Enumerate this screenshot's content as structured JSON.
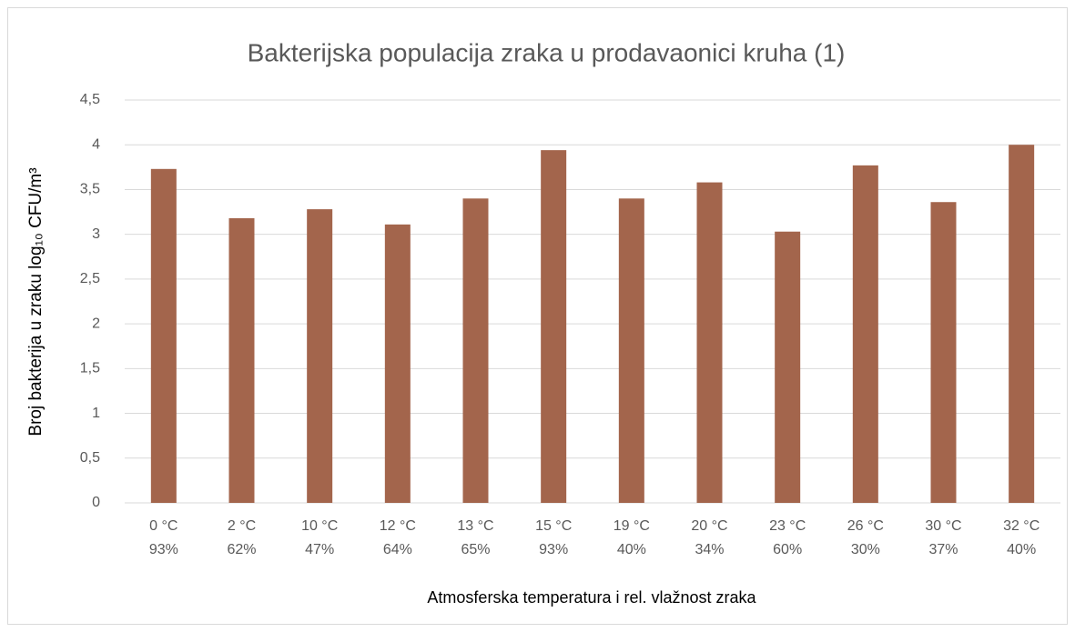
{
  "chart_data": {
    "type": "bar",
    "title": "Bakterijska populacija zraka u prodavaonici kruha (1)",
    "x_label": "Atmosferska temperatura i rel. vlažnost zraka",
    "y_label": "Broj bakterija u zraku log₁₀ CFU/m³",
    "categories": [
      "0 °C\n93%",
      "2 °C\n62%",
      "10 °C\n47%",
      "12 °C\n64%",
      "13 °C\n65%",
      "15 °C\n93%",
      "19 °C\n40%",
      "20 °C\n34%",
      "23 °C\n60%",
      "26 °C\n30%",
      "30 °C\n37%",
      "32 °C\n40%"
    ],
    "values": [
      3.73,
      3.18,
      3.28,
      3.11,
      3.4,
      3.94,
      3.4,
      3.58,
      3.03,
      3.77,
      3.36,
      4.0
    ],
    "color": "#a3654c",
    "ylim": [
      0,
      4.5
    ],
    "yticks": [
      0,
      {
        "value": 0.5,
        "label": "0,5"
      },
      1,
      {
        "value": 1.5,
        "label": "1,5"
      },
      2,
      {
        "value": 2.5,
        "label": "2,5"
      },
      3,
      {
        "value": 3.5,
        "label": "3,5"
      },
      4,
      {
        "value": 4.5,
        "label": "4,5"
      }
    ],
    "grid": true
  }
}
